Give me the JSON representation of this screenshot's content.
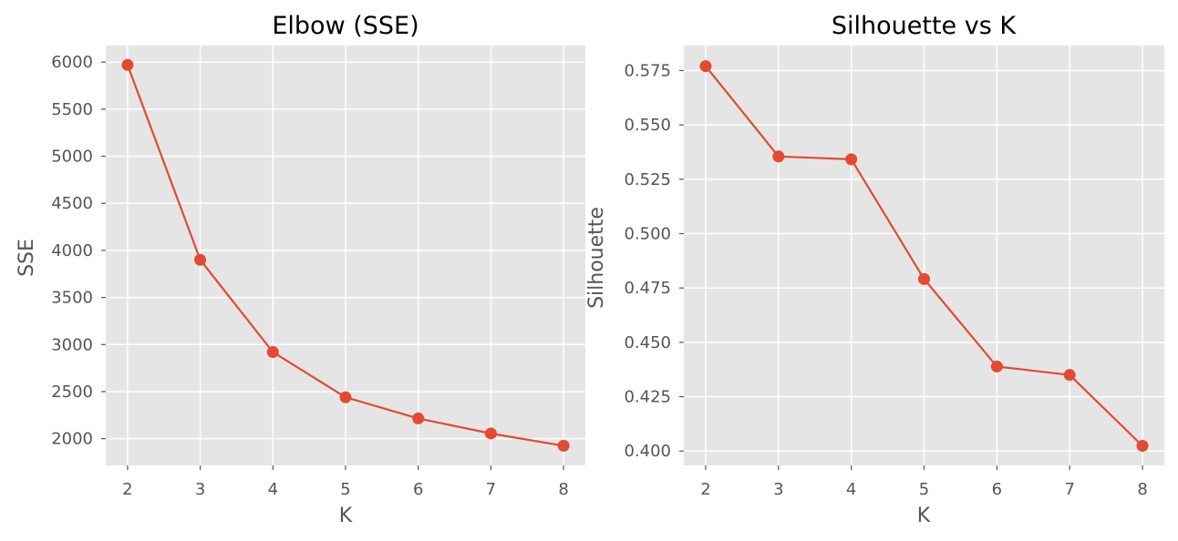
{
  "chart_data": [
    {
      "type": "line",
      "title": "Elbow (SSE)",
      "xlabel": "K",
      "ylabel": "SSE",
      "x": [
        2,
        3,
        4,
        5,
        6,
        7,
        8
      ],
      "series": [
        {
          "values": [
            5970,
            3900,
            2920,
            2440,
            2215,
            2055,
            1925
          ]
        }
      ],
      "xlim": [
        1.7,
        8.3
      ],
      "ylim": [
        1716,
        6176
      ],
      "xticks": [
        2,
        3,
        4,
        5,
        6,
        7,
        8
      ],
      "yticks": [
        2000,
        2500,
        3000,
        3500,
        4000,
        4500,
        5000,
        5500,
        6000
      ],
      "ytick_decimals": 0,
      "grid": true,
      "style": "ggplot",
      "color": "#E24A33"
    },
    {
      "type": "line",
      "title": "Silhouette vs K",
      "xlabel": "K",
      "ylabel": "Silhouette",
      "x": [
        2,
        3,
        4,
        5,
        6,
        7,
        8
      ],
      "series": [
        {
          "values": [
            0.577,
            0.5355,
            0.5342,
            0.4791,
            0.4389,
            0.435,
            0.4024
          ]
        }
      ],
      "xlim": [
        1.7,
        8.3
      ],
      "ylim": [
        0.3934,
        0.5865
      ],
      "xticks": [
        2,
        3,
        4,
        5,
        6,
        7,
        8
      ],
      "yticks": [
        0.4,
        0.425,
        0.45,
        0.475,
        0.5,
        0.525,
        0.55,
        0.575
      ],
      "ytick_decimals": 3,
      "grid": true,
      "style": "ggplot",
      "color": "#E24A33"
    }
  ]
}
